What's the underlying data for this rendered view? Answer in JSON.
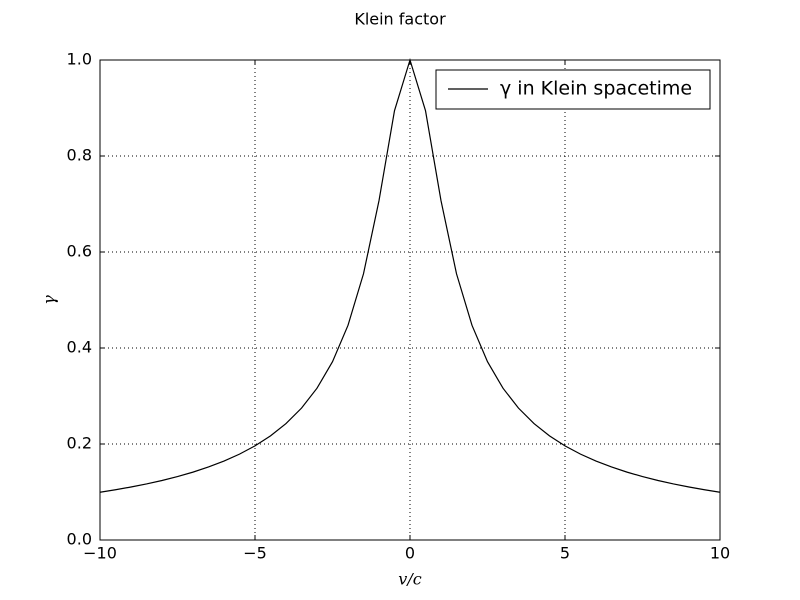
{
  "chart_data": {
    "type": "line",
    "title": "Klein factor",
    "x_label": "v/c",
    "y_label": "γ",
    "x": [
      -10,
      -9.5,
      -9,
      -8.5,
      -8,
      -7.5,
      -7,
      -6.5,
      -6,
      -5.5,
      -5,
      -4.5,
      -4,
      -3.5,
      -3,
      -2.5,
      -2,
      -1.5,
      -1,
      -0.5,
      0,
      0.5,
      1,
      1.5,
      2,
      2.5,
      3,
      3.5,
      4,
      4.5,
      5,
      5.5,
      6,
      6.5,
      7,
      7.5,
      8,
      8.5,
      9,
      9.5,
      10
    ],
    "series": [
      {
        "name": "γ in Klein spacetime",
        "color": "#000000",
        "values": [
          0.0995,
          0.1047,
          0.1104,
          0.1168,
          0.124,
          0.1322,
          0.1414,
          0.1521,
          0.1644,
          0.1789,
          0.1961,
          0.2169,
          0.2425,
          0.2747,
          0.3162,
          0.3714,
          0.4472,
          0.5547,
          0.7071,
          0.8944,
          1,
          0.8944,
          0.7071,
          0.5547,
          0.4472,
          0.3714,
          0.3162,
          0.2747,
          0.2425,
          0.2169,
          0.1961,
          0.1789,
          0.1644,
          0.1521,
          0.1414,
          0.1322,
          0.124,
          0.1168,
          0.1104,
          0.1047,
          0.0995
        ]
      }
    ],
    "xlim": [
      -10,
      10
    ],
    "ylim": [
      0,
      1
    ],
    "xticks": [
      {
        "value": -10,
        "label": "−10"
      },
      {
        "value": -5,
        "label": "−5"
      },
      0,
      5,
      10
    ],
    "yticks": [
      {
        "value": 0,
        "label": "0.0"
      },
      0.2,
      0.4,
      0.6,
      0.8,
      {
        "value": 1,
        "label": "1.0"
      }
    ],
    "grid": true,
    "legend": "upper right"
  }
}
